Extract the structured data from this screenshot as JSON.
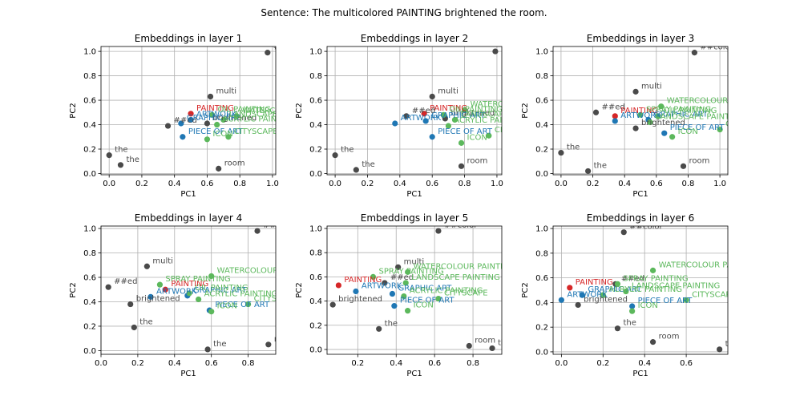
{
  "suptitle": "Sentence: The multicolored PAINTING brightened the room.",
  "colors": {
    "context": "#4a4a4a",
    "target": "#d62728",
    "related": "#1f77b4",
    "similar": "#5cb85c"
  },
  "chart_data": [
    {
      "type": "scatter",
      "title": "Embeddings in layer 1",
      "xlabel": "PC1",
      "ylabel": "PC2",
      "xlim": [
        -0.05,
        1.02
      ],
      "ylim": [
        -0.01,
        1.04
      ],
      "xticks": [
        "0.0",
        "0.2",
        "0.4",
        "0.6",
        "0.8",
        "1.0"
      ],
      "yticks": [
        "0.0",
        "0.2",
        "0.4",
        "0.6",
        "0.8",
        "1.0"
      ],
      "grid": true,
      "points": [
        {
          "label": "##color",
          "x": 0.97,
          "y": 0.99,
          "group": "context"
        },
        {
          "label": "multi",
          "x": 0.62,
          "y": 0.63,
          "group": "context"
        },
        {
          "label": "PAINTING",
          "x": 0.5,
          "y": 0.49,
          "group": "target"
        },
        {
          "label": "##ed",
          "x": 0.36,
          "y": 0.39,
          "group": "context"
        },
        {
          "label": "brightened",
          "x": 0.6,
          "y": 0.41,
          "group": "context"
        },
        {
          "label": "ARTWORK",
          "x": 0.5,
          "y": 0.44,
          "group": "related"
        },
        {
          "label": "GRAPHIC ART",
          "x": 0.44,
          "y": 0.41,
          "group": "related"
        },
        {
          "label": "PIECE OF ART",
          "x": 0.45,
          "y": 0.3,
          "group": "related"
        },
        {
          "label": "OIL PAINTING",
          "x": 0.63,
          "y": 0.48,
          "group": "similar"
        },
        {
          "label": "WATERCOLOUR PAINTING",
          "x": 0.78,
          "y": 0.47,
          "group": "similar"
        },
        {
          "label": "LANDSCAPE PAINTING",
          "x": 0.7,
          "y": 0.44,
          "group": "similar"
        },
        {
          "label": "ACRYLIC PAINTING",
          "x": 0.66,
          "y": 0.4,
          "group": "similar"
        },
        {
          "label": "CITYSCAPE",
          "x": 0.73,
          "y": 0.3,
          "group": "similar"
        },
        {
          "label": "ICON",
          "x": 0.6,
          "y": 0.28,
          "group": "similar"
        },
        {
          "label": "the",
          "x": 0.0,
          "y": 0.15,
          "group": "context"
        },
        {
          "label": "the",
          "x": 0.07,
          "y": 0.07,
          "group": "context"
        },
        {
          "label": "room",
          "x": 0.67,
          "y": 0.04,
          "group": "context"
        }
      ]
    },
    {
      "type": "scatter",
      "title": "Embeddings in layer 2",
      "xlabel": "PC1",
      "ylabel": "PC2",
      "xlim": [
        -0.05,
        1.03
      ],
      "ylim": [
        -0.01,
        1.04
      ],
      "xticks": [
        "0.0",
        "0.2",
        "0.4",
        "0.6",
        "0.8",
        "1.0"
      ],
      "yticks": [
        "0.0",
        "0.2",
        "0.4",
        "0.6",
        "0.8",
        "1.0"
      ],
      "grid": true,
      "points": [
        {
          "label": "##color",
          "x": 0.99,
          "y": 1.0,
          "group": "context"
        },
        {
          "label": "multi",
          "x": 0.6,
          "y": 0.63,
          "group": "context"
        },
        {
          "label": "PAINTING",
          "x": 0.55,
          "y": 0.49,
          "group": "target"
        },
        {
          "label": "##ed",
          "x": 0.44,
          "y": 0.47,
          "group": "context"
        },
        {
          "label": "brightened",
          "x": 0.68,
          "y": 0.45,
          "group": "context"
        },
        {
          "label": "ARTWORK",
          "x": 0.37,
          "y": 0.41,
          "group": "related"
        },
        {
          "label": "GRAPHIC ART",
          "x": 0.56,
          "y": 0.43,
          "group": "related"
        },
        {
          "label": "PIECE OF ART",
          "x": 0.6,
          "y": 0.3,
          "group": "related"
        },
        {
          "label": "OIL PAINTING",
          "x": 0.67,
          "y": 0.48,
          "group": "similar"
        },
        {
          "label": "WATERCOLOUR PAINTING",
          "x": 0.8,
          "y": 0.52,
          "group": "similar"
        },
        {
          "label": "LANDSCAPE PAINTING",
          "x": 0.74,
          "y": 0.44,
          "group": "similar"
        },
        {
          "label": "ACRYLIC PAINTING",
          "x": 0.7,
          "y": 0.39,
          "group": "similar"
        },
        {
          "label": "CITYSCAPE",
          "x": 0.95,
          "y": 0.31,
          "group": "similar"
        },
        {
          "label": "ICON",
          "x": 0.78,
          "y": 0.25,
          "group": "similar"
        },
        {
          "label": "the",
          "x": 0.0,
          "y": 0.15,
          "group": "context"
        },
        {
          "label": "the",
          "x": 0.13,
          "y": 0.03,
          "group": "context"
        },
        {
          "label": "room",
          "x": 0.78,
          "y": 0.06,
          "group": "context"
        }
      ]
    },
    {
      "type": "scatter",
      "title": "Embeddings in layer 3",
      "xlabel": "PC1",
      "ylabel": "PC2",
      "xlim": [
        -0.05,
        1.05
      ],
      "ylim": [
        -0.01,
        1.04
      ],
      "xticks": [
        "0.0",
        "0.2",
        "0.4",
        "0.6",
        "0.8",
        "1.0"
      ],
      "yticks": [
        "0.0",
        "0.2",
        "0.4",
        "0.6",
        "0.8",
        "1.0"
      ],
      "grid": true,
      "points": [
        {
          "label": "##color",
          "x": 0.84,
          "y": 0.99,
          "group": "context"
        },
        {
          "label": "multi",
          "x": 0.47,
          "y": 0.67,
          "group": "context"
        },
        {
          "label": "##ed",
          "x": 0.22,
          "y": 0.5,
          "group": "context"
        },
        {
          "label": "PAINTING",
          "x": 0.34,
          "y": 0.47,
          "group": "target"
        },
        {
          "label": "brightened",
          "x": 0.47,
          "y": 0.37,
          "group": "context"
        },
        {
          "label": "ARTWORK",
          "x": 0.34,
          "y": 0.43,
          "group": "related"
        },
        {
          "label": "GRAPHIC ART",
          "x": 0.55,
          "y": 0.44,
          "group": "related"
        },
        {
          "label": "PIECE OF ART",
          "x": 0.65,
          "y": 0.33,
          "group": "related"
        },
        {
          "label": "WATERCOLOUR PAINTING",
          "x": 0.63,
          "y": 0.55,
          "group": "similar"
        },
        {
          "label": "SPRAY PAINTING",
          "x": 0.5,
          "y": 0.48,
          "group": "similar"
        },
        {
          "label": "OIL PAINTING",
          "x": 0.61,
          "y": 0.47,
          "group": "similar"
        },
        {
          "label": "LANDSCAPE PAINTING",
          "x": 0.56,
          "y": 0.42,
          "group": "similar"
        },
        {
          "label": "CITYSCAPE",
          "x": 1.0,
          "y": 0.36,
          "group": "similar"
        },
        {
          "label": "ICON",
          "x": 0.7,
          "y": 0.3,
          "group": "similar"
        },
        {
          "label": "the",
          "x": 0.0,
          "y": 0.17,
          "group": "context"
        },
        {
          "label": "the",
          "x": 0.17,
          "y": 0.02,
          "group": "context"
        },
        {
          "label": "room",
          "x": 0.77,
          "y": 0.06,
          "group": "context"
        }
      ]
    },
    {
      "type": "scatter",
      "title": "Embeddings in layer 4",
      "xlabel": "PC1",
      "ylabel": "PC2",
      "xlim": [
        0.0,
        0.95
      ],
      "ylim": [
        -0.03,
        1.02
      ],
      "xticks": [
        "0.0",
        "0.2",
        "0.4",
        "0.6",
        "0.8"
      ],
      "yticks": [
        "0.0",
        "0.2",
        "0.4",
        "0.6",
        "0.8",
        "1.0"
      ],
      "grid": true,
      "points": [
        {
          "label": "##color",
          "x": 0.85,
          "y": 0.98,
          "group": "context"
        },
        {
          "label": "multi",
          "x": 0.25,
          "y": 0.69,
          "group": "context"
        },
        {
          "label": "##ed",
          "x": 0.04,
          "y": 0.52,
          "group": "context"
        },
        {
          "label": "PAINTING",
          "x": 0.35,
          "y": 0.5,
          "group": "target"
        },
        {
          "label": "brightened",
          "x": 0.16,
          "y": 0.38,
          "group": "context"
        },
        {
          "label": "ARTWORK",
          "x": 0.27,
          "y": 0.44,
          "group": "related"
        },
        {
          "label": "GRAPHIC ART",
          "x": 0.47,
          "y": 0.45,
          "group": "related"
        },
        {
          "label": "PIECE OF ART",
          "x": 0.59,
          "y": 0.33,
          "group": "related"
        },
        {
          "label": "WATERCOLOUR PAINTING",
          "x": 0.6,
          "y": 0.61,
          "group": "similar"
        },
        {
          "label": "SPRAY PAINTING",
          "x": 0.32,
          "y": 0.54,
          "group": "similar"
        },
        {
          "label": "OIL PAINTING",
          "x": 0.48,
          "y": 0.47,
          "group": "similar"
        },
        {
          "label": "ACRYLIC PAINTING",
          "x": 0.53,
          "y": 0.42,
          "group": "similar"
        },
        {
          "label": "CITYSCAPE",
          "x": 0.8,
          "y": 0.38,
          "group": "similar"
        },
        {
          "label": "ICON",
          "x": 0.6,
          "y": 0.32,
          "group": "similar"
        },
        {
          "label": "the",
          "x": 0.18,
          "y": 0.19,
          "group": "context"
        },
        {
          "label": "the",
          "x": 0.58,
          "y": 0.01,
          "group": "context"
        },
        {
          "label": "room",
          "x": 0.91,
          "y": 0.05,
          "group": "context"
        }
      ]
    },
    {
      "type": "scatter",
      "title": "Embeddings in layer 5",
      "xlabel": "PC1",
      "ylabel": "PC2",
      "xlim": [
        0.04,
        0.95
      ],
      "ylim": [
        -0.04,
        1.02
      ],
      "xticks": [
        "0.2",
        "0.4",
        "0.6",
        "0.8"
      ],
      "yticks": [
        "0.0",
        "0.2",
        "0.4",
        "0.6",
        "0.8",
        "1.0"
      ],
      "grid": true,
      "points": [
        {
          "label": "##color",
          "x": 0.62,
          "y": 0.98,
          "group": "context"
        },
        {
          "label": "multi",
          "x": 0.41,
          "y": 0.68,
          "group": "context"
        },
        {
          "label": "PAINTING",
          "x": 0.1,
          "y": 0.53,
          "group": "target"
        },
        {
          "label": "brightened",
          "x": 0.07,
          "y": 0.37,
          "group": "context"
        },
        {
          "label": "##ed",
          "x": 0.34,
          "y": 0.55,
          "group": "context"
        },
        {
          "label": "ARTWORK",
          "x": 0.19,
          "y": 0.48,
          "group": "related"
        },
        {
          "label": "GRAPHIC ART",
          "x": 0.38,
          "y": 0.46,
          "group": "related"
        },
        {
          "label": "PIECE OF ART",
          "x": 0.39,
          "y": 0.36,
          "group": "related"
        },
        {
          "label": "WATERCOLOUR PAINTING",
          "x": 0.46,
          "y": 0.64,
          "group": "similar"
        },
        {
          "label": "SPRAY PAINTING",
          "x": 0.28,
          "y": 0.6,
          "group": "similar"
        },
        {
          "label": "LANDSCAPE PAINTING",
          "x": 0.45,
          "y": 0.55,
          "group": "similar"
        },
        {
          "label": "ACRYLIC PAINTING",
          "x": 0.44,
          "y": 0.44,
          "group": "similar"
        },
        {
          "label": "CITYSCAPE",
          "x": 0.62,
          "y": 0.42,
          "group": "similar"
        },
        {
          "label": "ICON",
          "x": 0.46,
          "y": 0.32,
          "group": "similar"
        },
        {
          "label": "the",
          "x": 0.31,
          "y": 0.17,
          "group": "context"
        },
        {
          "label": "room",
          "x": 0.78,
          "y": 0.03,
          "group": "context"
        },
        {
          "label": "the",
          "x": 0.9,
          "y": 0.01,
          "group": "context"
        }
      ]
    },
    {
      "type": "scatter",
      "title": "Embeddings in layer 6",
      "xlabel": "PC1",
      "ylabel": "PC2",
      "xlim": [
        -0.04,
        0.8
      ],
      "ylim": [
        -0.02,
        1.02
      ],
      "xticks": [
        "0.0",
        "0.2",
        "0.4",
        "0.6"
      ],
      "yticks": [
        "0.0",
        "0.2",
        "0.4",
        "0.6",
        "0.8",
        "1.0"
      ],
      "grid": true,
      "points": [
        {
          "label": "##color",
          "x": 0.3,
          "y": 0.97,
          "group": "context"
        },
        {
          "label": "PAINTING",
          "x": 0.04,
          "y": 0.52,
          "group": "target"
        },
        {
          "label": "##ed",
          "x": 0.26,
          "y": 0.55,
          "group": "context"
        },
        {
          "label": "brightened",
          "x": 0.08,
          "y": 0.38,
          "group": "context"
        },
        {
          "label": "ARTWORK",
          "x": 0.0,
          "y": 0.42,
          "group": "related"
        },
        {
          "label": "GRAPHIC ART",
          "x": 0.1,
          "y": 0.46,
          "group": "related"
        },
        {
          "label": "PIECE OF ART",
          "x": 0.34,
          "y": 0.37,
          "group": "related"
        },
        {
          "label": "WATERCOLOUR PAINTING",
          "x": 0.44,
          "y": 0.66,
          "group": "similar"
        },
        {
          "label": "SPRAY PAINTING",
          "x": 0.27,
          "y": 0.55,
          "group": "similar"
        },
        {
          "label": "LANDSCAPE PAINTING",
          "x": 0.31,
          "y": 0.49,
          "group": "similar"
        },
        {
          "label": "ACRYLIC PAINTING",
          "x": 0.2,
          "y": 0.46,
          "group": "similar"
        },
        {
          "label": "CITYSCAPE",
          "x": 0.6,
          "y": 0.42,
          "group": "similar"
        },
        {
          "label": "ICON",
          "x": 0.34,
          "y": 0.33,
          "group": "similar"
        },
        {
          "label": "the",
          "x": 0.27,
          "y": 0.19,
          "group": "context"
        },
        {
          "label": "room",
          "x": 0.44,
          "y": 0.08,
          "group": "context"
        },
        {
          "label": "the",
          "x": 0.76,
          "y": 0.02,
          "group": "context"
        }
      ]
    }
  ]
}
